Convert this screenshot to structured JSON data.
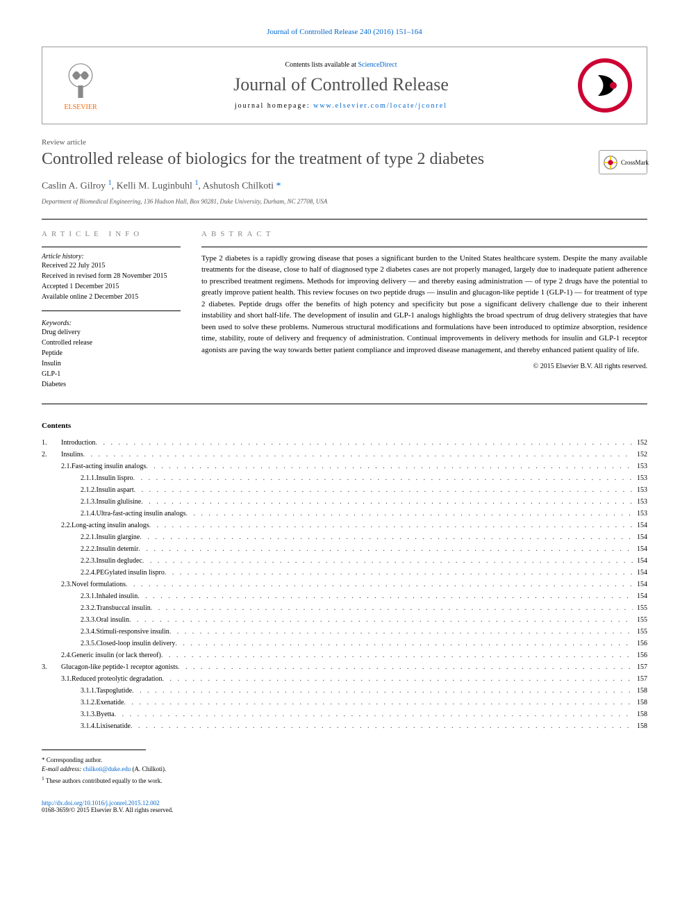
{
  "top_link": "Journal of Controlled Release 240 (2016) 151–164",
  "header": {
    "contents_prefix": "Contents lists available at ",
    "contents_link": "ScienceDirect",
    "journal_name": "Journal of Controlled Release",
    "homepage_prefix": "journal homepage: ",
    "homepage_url": "www.elsevier.com/locate/jconrel",
    "publisher": "ELSEVIER"
  },
  "article_type": "Review article",
  "title": "Controlled release of biologics for the treatment of type 2 diabetes",
  "crossmark_label": "CrossMark",
  "authors_line": {
    "a1": "Caslin A. Gilroy ",
    "m1": "1",
    "a2": ", Kelli M. Luginbuhl ",
    "m2": "1",
    "a3": ", Ashutosh Chilkoti ",
    "star": "*"
  },
  "affiliation": "Department of Biomedical Engineering, 136 Hudson Hall, Box 90281, Duke University, Durham, NC 27708, USA",
  "info_header": "article info",
  "abstract_header": "abstract",
  "history": {
    "label": "Article history:",
    "received": "Received 22 July 2015",
    "revised": "Received in revised form 28 November 2015",
    "accepted": "Accepted 1 December 2015",
    "online": "Available online 2 December 2015"
  },
  "keywords": {
    "label": "Keywords:",
    "items": [
      "Drug delivery",
      "Controlled release",
      "Peptide",
      "Insulin",
      "GLP-1",
      "Diabetes"
    ]
  },
  "abstract": "Type 2 diabetes is a rapidly growing disease that poses a significant burden to the United States healthcare system. Despite the many available treatments for the disease, close to half of diagnosed type 2 diabetes cases are not properly managed, largely due to inadequate patient adherence to prescribed treatment regimens. Methods for improving delivery — and thereby easing administration — of type 2 drugs have the potential to greatly improve patient health. This review focuses on two peptide drugs — insulin and glucagon-like peptide 1 (GLP-1) — for treatment of type 2 diabetes. Peptide drugs offer the benefits of high potency and specificity but pose a significant delivery challenge due to their inherent instability and short half-life. The development of insulin and GLP-1 analogs highlights the broad spectrum of drug delivery strategies that have been used to solve these problems. Numerous structural modifications and formulations have been introduced to optimize absorption, residence time, stability, route of delivery and frequency of administration. Continual improvements in delivery methods for insulin and GLP-1 receptor agonists are paving the way towards better patient compliance and improved disease management, and thereby enhanced patient quality of life.",
  "copyright": "© 2015 Elsevier B.V. All rights reserved.",
  "contents_label": "Contents",
  "toc": [
    {
      "n": "1.",
      "t": "Introduction",
      "p": "152",
      "l": 0
    },
    {
      "n": "2.",
      "t": "Insulins",
      "p": "152",
      "l": 0
    },
    {
      "n": "2.1.",
      "t": "Fast-acting insulin analogs",
      "p": "153",
      "l": 1
    },
    {
      "n": "2.1.1.",
      "t": "Insulin lispro",
      "p": "153",
      "l": 2
    },
    {
      "n": "2.1.2.",
      "t": "Insulin aspart",
      "p": "153",
      "l": 2
    },
    {
      "n": "2.1.3.",
      "t": "Insulin glulisine",
      "p": "153",
      "l": 2
    },
    {
      "n": "2.1.4.",
      "t": "Ultra-fast-acting insulin analogs",
      "p": "153",
      "l": 2
    },
    {
      "n": "2.2.",
      "t": "Long-acting insulin analogs",
      "p": "154",
      "l": 1
    },
    {
      "n": "2.2.1.",
      "t": "Insulin glargine",
      "p": "154",
      "l": 2
    },
    {
      "n": "2.2.2.",
      "t": "Insulin detemir",
      "p": "154",
      "l": 2
    },
    {
      "n": "2.2.3.",
      "t": "Insulin degludec",
      "p": "154",
      "l": 2
    },
    {
      "n": "2.2.4.",
      "t": "PEGylated insulin lispro",
      "p": "154",
      "l": 2
    },
    {
      "n": "2.3.",
      "t": "Novel formulations",
      "p": "154",
      "l": 1
    },
    {
      "n": "2.3.1.",
      "t": "Inhaled insulin",
      "p": "154",
      "l": 2
    },
    {
      "n": "2.3.2.",
      "t": "Transbuccal insulin",
      "p": "155",
      "l": 2
    },
    {
      "n": "2.3.3.",
      "t": "Oral insulin",
      "p": "155",
      "l": 2
    },
    {
      "n": "2.3.4.",
      "t": "Stimuli-responsive insulin",
      "p": "155",
      "l": 2
    },
    {
      "n": "2.3.5.",
      "t": "Closed-loop insulin delivery",
      "p": "156",
      "l": 2
    },
    {
      "n": "2.4.",
      "t": "Generic insulin (or lack thereof)",
      "p": "156",
      "l": 1
    },
    {
      "n": "3.",
      "t": "Glucagon-like peptide-1 receptor agonists",
      "p": "157",
      "l": 0
    },
    {
      "n": "3.1.",
      "t": "Reduced proteolytic degradation",
      "p": "157",
      "l": 1
    },
    {
      "n": "3.1.1.",
      "t": "Taspoglutide",
      "p": "158",
      "l": 2
    },
    {
      "n": "3.1.2.",
      "t": "Exenatide",
      "p": "158",
      "l": 2
    },
    {
      "n": "3.1.3.",
      "t": "Byetta",
      "p": "158",
      "l": 2
    },
    {
      "n": "3.1.4.",
      "t": "Lixisenatide",
      "p": "158",
      "l": 2
    }
  ],
  "footnotes": {
    "corr_marker": "*",
    "corr_text": " Corresponding author.",
    "email_label": "E-mail address: ",
    "email": "chilkoti@duke.edu",
    "email_suffix": " (A. Chilkoti).",
    "contrib_marker": "1",
    "contrib_text": " These authors contributed equally to the work."
  },
  "doi": {
    "url": "http://dx.doi.org/10.1016/j.jconrel.2015.12.002",
    "issn_line": "0168-3659/© 2015 Elsevier B.V. All rights reserved."
  },
  "colors": {
    "link": "#0066cc",
    "publisher": "#ff6600",
    "title_gray": "#4a4a4a",
    "badge_red": "#cc0033"
  }
}
